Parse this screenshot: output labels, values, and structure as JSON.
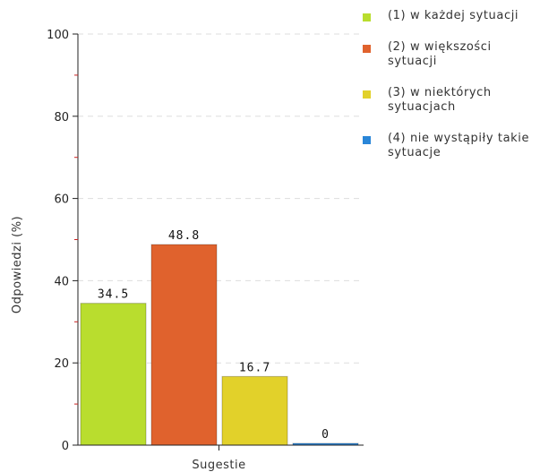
{
  "chart_data": {
    "type": "bar",
    "categories": [
      "Sugestie"
    ],
    "series": [
      {
        "name": "(1) w każdej sytuacji",
        "color": "#b9dd2e",
        "values": [
          34.5
        ],
        "label": "34.5"
      },
      {
        "name": "(2) w większości sytuacji",
        "color": "#e0622d",
        "values": [
          48.8
        ],
        "label": "48.8"
      },
      {
        "name": "(3) w niektórych sytuacjach",
        "color": "#e2d12a",
        "values": [
          16.7
        ],
        "label": "16.7"
      },
      {
        "name": "(4) nie wystąpiły takie sytuacje",
        "color": "#2a86d8",
        "values": [
          0
        ],
        "label": "0"
      }
    ],
    "xlabel": "Sugestie",
    "ylabel": "Odpowiedzi (%)",
    "ylim": [
      0,
      100
    ],
    "yticks": [
      "0",
      "20",
      "40",
      "60",
      "80",
      "100"
    ],
    "grid": true,
    "legend_position": "right"
  }
}
